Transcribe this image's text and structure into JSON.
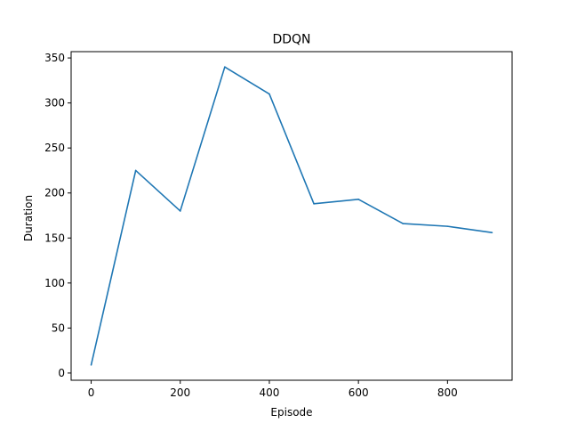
{
  "chart_data": {
    "type": "line",
    "title": "DDQN",
    "xlabel": "Episode",
    "ylabel": "Duration",
    "xlim": [
      -45,
      945
    ],
    "ylim": [
      -8,
      357
    ],
    "xticks": [
      0,
      200,
      400,
      600,
      800
    ],
    "yticks": [
      0,
      50,
      100,
      150,
      200,
      250,
      300,
      350
    ],
    "xtick_labels": [
      "0",
      "200",
      "400",
      "600",
      "800"
    ],
    "ytick_labels": [
      "0",
      "50",
      "100",
      "150",
      "200",
      "250",
      "300",
      "350"
    ],
    "grid": false,
    "series": [
      {
        "color": "#1f77b4",
        "x": [
          0,
          100,
          200,
          300,
          400,
          500,
          600,
          700,
          800,
          900
        ],
        "y": [
          9,
          225,
          180,
          340,
          310,
          188,
          193,
          166,
          163,
          156
        ]
      }
    ]
  }
}
